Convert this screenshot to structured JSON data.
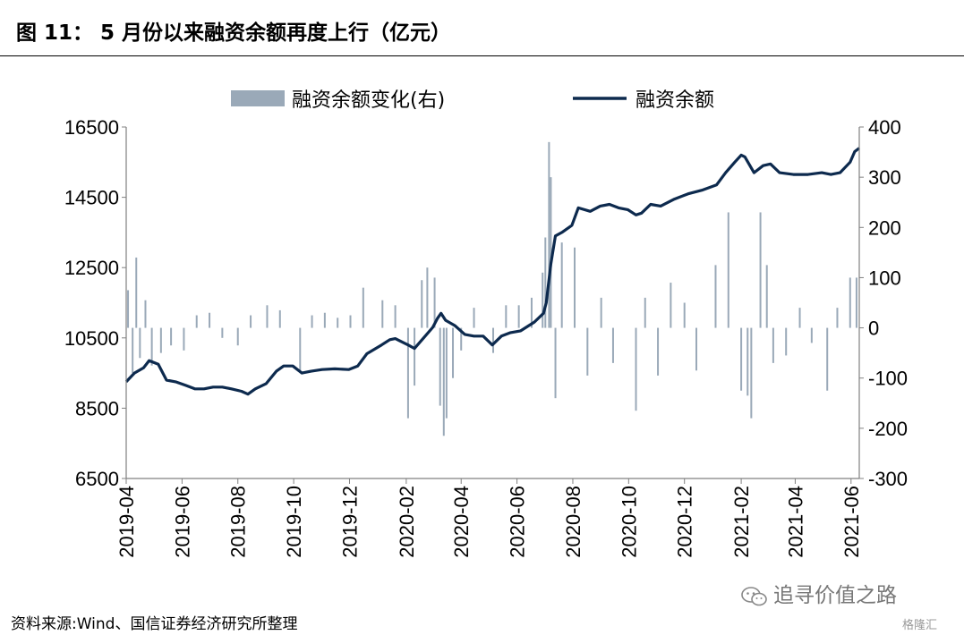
{
  "figure": {
    "title": "图 11：  5 月份以来融资余额再度上行（亿元）",
    "source": "资料来源:Wind、国信证券经济研究所整理",
    "watermark_text": "追寻价值之路",
    "watermark_brand": "格隆汇",
    "watermark_icon": "wechat-icon"
  },
  "chart_data": {
    "type": "line",
    "legend": {
      "placement": "top",
      "items": [
        "融资余额变化(右)",
        "融资余额"
      ]
    },
    "colors": {
      "balance_line": "#0d2a4e",
      "change_bars": "#9aa9b8",
      "axis": "#808080"
    },
    "grid": false,
    "x_tick_labels": [
      "2019-04",
      "2019-06",
      "2019-08",
      "2019-10",
      "2019-12",
      "2020-02",
      "2020-04",
      "2020-06",
      "2020-08",
      "2020-10",
      "2020-12",
      "2021-02",
      "2021-04",
      "2021-06"
    ],
    "left_axis": {
      "ylim": [
        6500,
        16500
      ],
      "ticks": [
        6500,
        8500,
        10500,
        12500,
        14500,
        16500
      ]
    },
    "right_axis": {
      "ylim": [
        -300,
        400
      ],
      "ticks": [
        -300,
        -200,
        -100,
        0,
        100,
        200,
        300,
        400
      ]
    },
    "x_range": [
      "2019-04-01",
      "2021-06-10"
    ],
    "series": [
      {
        "name": "融资余额",
        "axis": "left",
        "kind": "line",
        "points": [
          [
            "2019-04-01",
            9250
          ],
          [
            "2019-04-10",
            9500
          ],
          [
            "2019-04-20",
            9650
          ],
          [
            "2019-04-26",
            9850
          ],
          [
            "2019-05-06",
            9750
          ],
          [
            "2019-05-15",
            9300
          ],
          [
            "2019-05-25",
            9250
          ],
          [
            "2019-06-05",
            9150
          ],
          [
            "2019-06-15",
            9050
          ],
          [
            "2019-06-25",
            9050
          ],
          [
            "2019-07-05",
            9100
          ],
          [
            "2019-07-15",
            9100
          ],
          [
            "2019-07-25",
            9050
          ],
          [
            "2019-08-05",
            8980
          ],
          [
            "2019-08-12",
            8900
          ],
          [
            "2019-08-20",
            9050
          ],
          [
            "2019-09-01",
            9200
          ],
          [
            "2019-09-12",
            9550
          ],
          [
            "2019-09-20",
            9700
          ],
          [
            "2019-09-30",
            9700
          ],
          [
            "2019-10-10",
            9500
          ],
          [
            "2019-10-20",
            9550
          ],
          [
            "2019-11-01",
            9600
          ],
          [
            "2019-11-15",
            9620
          ],
          [
            "2019-11-30",
            9600
          ],
          [
            "2019-12-10",
            9700
          ],
          [
            "2019-12-20",
            10050
          ],
          [
            "2020-01-05",
            10300
          ],
          [
            "2020-01-14",
            10450
          ],
          [
            "2020-01-20",
            10480
          ],
          [
            "2020-02-03",
            10300
          ],
          [
            "2020-02-10",
            10200
          ],
          [
            "2020-02-20",
            10500
          ],
          [
            "2020-03-01",
            10800
          ],
          [
            "2020-03-06",
            11050
          ],
          [
            "2020-03-10",
            11200
          ],
          [
            "2020-03-15",
            11000
          ],
          [
            "2020-03-25",
            10850
          ],
          [
            "2020-04-05",
            10600
          ],
          [
            "2020-04-15",
            10550
          ],
          [
            "2020-04-25",
            10550
          ],
          [
            "2020-05-05",
            10300
          ],
          [
            "2020-05-15",
            10550
          ],
          [
            "2020-05-25",
            10650
          ],
          [
            "2020-06-05",
            10700
          ],
          [
            "2020-06-20",
            10950
          ],
          [
            "2020-06-30",
            11200
          ],
          [
            "2020-07-03",
            11500
          ],
          [
            "2020-07-08",
            12600
          ],
          [
            "2020-07-13",
            13400
          ],
          [
            "2020-07-20",
            13500
          ],
          [
            "2020-07-31",
            13700
          ],
          [
            "2020-08-07",
            14200
          ],
          [
            "2020-08-20",
            14100
          ],
          [
            "2020-08-31",
            14250
          ],
          [
            "2020-09-10",
            14300
          ],
          [
            "2020-09-20",
            14200
          ],
          [
            "2020-09-30",
            14150
          ],
          [
            "2020-10-09",
            14000
          ],
          [
            "2020-10-15",
            14050
          ],
          [
            "2020-10-25",
            14300
          ],
          [
            "2020-11-05",
            14250
          ],
          [
            "2020-11-20",
            14450
          ],
          [
            "2020-12-05",
            14600
          ],
          [
            "2020-12-20",
            14700
          ],
          [
            "2021-01-05",
            14850
          ],
          [
            "2021-01-15",
            15200
          ],
          [
            "2021-01-25",
            15500
          ],
          [
            "2021-02-01",
            15700
          ],
          [
            "2021-02-05",
            15650
          ],
          [
            "2021-02-15",
            15200
          ],
          [
            "2021-02-25",
            15400
          ],
          [
            "2021-03-05",
            15450
          ],
          [
            "2021-03-15",
            15200
          ],
          [
            "2021-03-30",
            15150
          ],
          [
            "2021-04-15",
            15150
          ],
          [
            "2021-04-30",
            15200
          ],
          [
            "2021-05-10",
            15150
          ],
          [
            "2021-05-20",
            15200
          ],
          [
            "2021-05-31",
            15500
          ],
          [
            "2021-06-05",
            15800
          ],
          [
            "2021-06-10",
            15900
          ]
        ]
      },
      {
        "name": "融资余额变化(右)",
        "axis": "right",
        "kind": "bar",
        "points": [
          [
            "2019-04-03",
            75
          ],
          [
            "2019-04-08",
            -90
          ],
          [
            "2019-04-12",
            140
          ],
          [
            "2019-04-16",
            -60
          ],
          [
            "2019-04-22",
            55
          ],
          [
            "2019-04-29",
            -75
          ],
          [
            "2019-05-09",
            -50
          ],
          [
            "2019-05-20",
            -35
          ],
          [
            "2019-06-03",
            -45
          ],
          [
            "2019-06-17",
            25
          ],
          [
            "2019-07-01",
            30
          ],
          [
            "2019-07-15",
            -20
          ],
          [
            "2019-08-01",
            -35
          ],
          [
            "2019-08-15",
            25
          ],
          [
            "2019-09-02",
            45
          ],
          [
            "2019-09-16",
            35
          ],
          [
            "2019-10-08",
            -85
          ],
          [
            "2019-10-21",
            25
          ],
          [
            "2019-11-04",
            30
          ],
          [
            "2019-11-18",
            20
          ],
          [
            "2019-12-02",
            25
          ],
          [
            "2019-12-16",
            80
          ],
          [
            "2020-01-06",
            55
          ],
          [
            "2020-01-20",
            45
          ],
          [
            "2020-02-03",
            -180
          ],
          [
            "2020-02-10",
            -115
          ],
          [
            "2020-02-18",
            95
          ],
          [
            "2020-02-24",
            120
          ],
          [
            "2020-03-03",
            100
          ],
          [
            "2020-03-09",
            -155
          ],
          [
            "2020-03-13",
            -215
          ],
          [
            "2020-03-16",
            -180
          ],
          [
            "2020-03-23",
            -100
          ],
          [
            "2020-04-01",
            -45
          ],
          [
            "2020-04-15",
            40
          ],
          [
            "2020-05-06",
            -50
          ],
          [
            "2020-05-20",
            45
          ],
          [
            "2020-06-03",
            45
          ],
          [
            "2020-06-17",
            60
          ],
          [
            "2020-06-29",
            110
          ],
          [
            "2020-07-02",
            180
          ],
          [
            "2020-07-06",
            370
          ],
          [
            "2020-07-08",
            300
          ],
          [
            "2020-07-13",
            -140
          ],
          [
            "2020-07-20",
            170
          ],
          [
            "2020-08-03",
            160
          ],
          [
            "2020-08-17",
            -95
          ],
          [
            "2020-09-01",
            60
          ],
          [
            "2020-09-14",
            -70
          ],
          [
            "2020-10-09",
            -165
          ],
          [
            "2020-10-19",
            60
          ],
          [
            "2020-11-02",
            -95
          ],
          [
            "2020-11-16",
            90
          ],
          [
            "2020-12-01",
            50
          ],
          [
            "2020-12-14",
            -85
          ],
          [
            "2021-01-04",
            125
          ],
          [
            "2021-01-18",
            230
          ],
          [
            "2021-02-01",
            -125
          ],
          [
            "2021-02-08",
            -135
          ],
          [
            "2021-02-12",
            -180
          ],
          [
            "2021-02-22",
            230
          ],
          [
            "2021-03-01",
            125
          ],
          [
            "2021-03-08",
            -70
          ],
          [
            "2021-03-22",
            -55
          ],
          [
            "2021-04-06",
            40
          ],
          [
            "2021-04-19",
            -30
          ],
          [
            "2021-05-06",
            -125
          ],
          [
            "2021-05-17",
            40
          ],
          [
            "2021-05-31",
            100
          ],
          [
            "2021-06-07",
            100
          ]
        ]
      }
    ]
  }
}
